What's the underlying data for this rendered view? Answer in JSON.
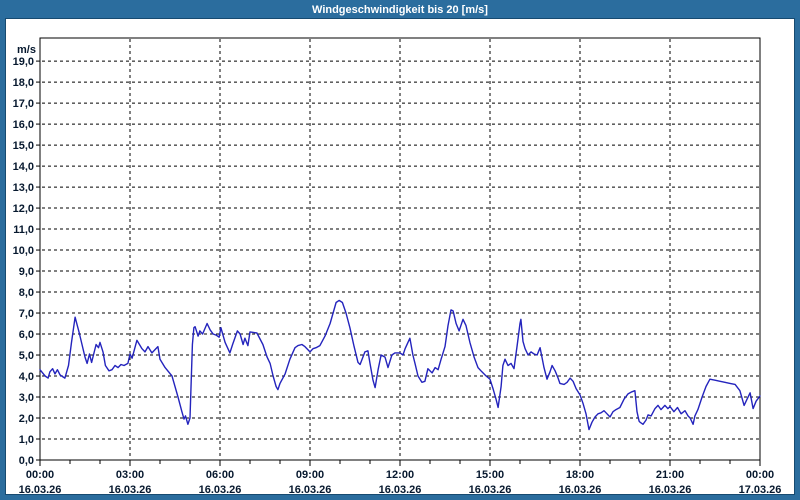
{
  "title_bar": {
    "text": "Windgeschwindigkeit bis 20 [m/s]",
    "bg_color": "#2b6d9e",
    "text_color": "#ffffff"
  },
  "colors": {
    "panel_bg": "#ffffff",
    "grid": "#000000",
    "axis": "#000000",
    "tick_label": "#06182e",
    "series_line": "#2424bd"
  },
  "chart_data": {
    "type": "line",
    "title": "Windgeschwindigkeit bis 20 [m/s]",
    "xlabel": "",
    "ylabel": "m/s",
    "ylim": [
      0,
      20.1
    ],
    "xlim_hours": [
      0,
      24
    ],
    "grid": true,
    "grid_style": "dashed",
    "legend_position": "none",
    "y_tick_labels": [
      "0,0",
      "1,0",
      "2,0",
      "3,0",
      "4,0",
      "5,0",
      "6,0",
      "7,0",
      "8,0",
      "9,0",
      "10,0",
      "11,0",
      "12,0",
      "13,0",
      "14,0",
      "15,0",
      "16,0",
      "17,0",
      "18,0",
      "19,0"
    ],
    "x_ticks": [
      {
        "hour": 0,
        "time": "00:00",
        "date": "16.03.26"
      },
      {
        "hour": 3,
        "time": "03:00",
        "date": "16.03.26"
      },
      {
        "hour": 6,
        "time": "06:00",
        "date": "16.03.26"
      },
      {
        "hour": 9,
        "time": "09:00",
        "date": "16.03.26"
      },
      {
        "hour": 12,
        "time": "12:00",
        "date": "16.03.26"
      },
      {
        "hour": 15,
        "time": "15:00",
        "date": "16.03.26"
      },
      {
        "hour": 18,
        "time": "18:00",
        "date": "16.03.26"
      },
      {
        "hour": 21,
        "time": "21:00",
        "date": "16.03.26"
      },
      {
        "hour": 24,
        "time": "00:00",
        "date": "17.03.26"
      }
    ],
    "minor_x_tick_every_hours": 1,
    "series": [
      {
        "name": "Windgeschwindigkeit",
        "unit": "m/s",
        "color": "#2424bd",
        "points": [
          [
            0,
            4.3
          ],
          [
            0.17,
            4.0
          ],
          [
            0.27,
            3.9
          ],
          [
            0.33,
            4.2
          ],
          [
            0.42,
            4.35
          ],
          [
            0.5,
            4.1
          ],
          [
            0.58,
            4.3
          ],
          [
            0.67,
            4.05
          ],
          [
            0.83,
            3.9
          ],
          [
            0.95,
            4.5
          ],
          [
            1.05,
            5.6
          ],
          [
            1.17,
            6.8
          ],
          [
            1.3,
            6.1
          ],
          [
            1.4,
            5.5
          ],
          [
            1.5,
            4.9
          ],
          [
            1.57,
            4.6
          ],
          [
            1.65,
            5.05
          ],
          [
            1.72,
            4.65
          ],
          [
            1.87,
            5.5
          ],
          [
            1.95,
            5.35
          ],
          [
            2.0,
            5.6
          ],
          [
            2.1,
            5.15
          ],
          [
            2.18,
            4.5
          ],
          [
            2.3,
            4.25
          ],
          [
            2.4,
            4.3
          ],
          [
            2.5,
            4.5
          ],
          [
            2.6,
            4.4
          ],
          [
            2.7,
            4.55
          ],
          [
            2.8,
            4.5
          ],
          [
            2.93,
            4.6
          ],
          [
            3.0,
            5.05
          ],
          [
            3.07,
            4.85
          ],
          [
            3.23,
            5.7
          ],
          [
            3.4,
            5.3
          ],
          [
            3.5,
            5.15
          ],
          [
            3.6,
            5.4
          ],
          [
            3.73,
            5.1
          ],
          [
            3.93,
            5.4
          ],
          [
            4.0,
            4.8
          ],
          [
            4.17,
            4.4
          ],
          [
            4.4,
            4.0
          ],
          [
            4.6,
            3.0
          ],
          [
            4.73,
            2.3
          ],
          [
            4.8,
            1.95
          ],
          [
            4.85,
            2.1
          ],
          [
            4.93,
            1.7
          ],
          [
            5.0,
            2.0
          ],
          [
            5.08,
            5.5
          ],
          [
            5.13,
            6.3
          ],
          [
            5.17,
            6.35
          ],
          [
            5.27,
            5.9
          ],
          [
            5.33,
            6.15
          ],
          [
            5.42,
            6.0
          ],
          [
            5.57,
            6.5
          ],
          [
            5.67,
            6.2
          ],
          [
            5.77,
            6.0
          ],
          [
            5.87,
            5.95
          ],
          [
            5.97,
            5.85
          ],
          [
            6.03,
            6.3
          ],
          [
            6.17,
            5.6
          ],
          [
            6.33,
            5.1
          ],
          [
            6.42,
            5.5
          ],
          [
            6.58,
            6.15
          ],
          [
            6.67,
            6.0
          ],
          [
            6.77,
            5.5
          ],
          [
            6.83,
            5.8
          ],
          [
            6.93,
            5.45
          ],
          [
            7.0,
            6.1
          ],
          [
            7.23,
            6.05
          ],
          [
            7.43,
            5.5
          ],
          [
            7.57,
            4.9
          ],
          [
            7.67,
            4.6
          ],
          [
            7.77,
            4.0
          ],
          [
            7.87,
            3.5
          ],
          [
            7.93,
            3.35
          ],
          [
            8.0,
            3.65
          ],
          [
            8.17,
            4.1
          ],
          [
            8.33,
            4.8
          ],
          [
            8.5,
            5.35
          ],
          [
            8.6,
            5.45
          ],
          [
            8.73,
            5.5
          ],
          [
            8.83,
            5.4
          ],
          [
            9.0,
            5.15
          ],
          [
            9.1,
            5.3
          ],
          [
            9.2,
            5.35
          ],
          [
            9.33,
            5.45
          ],
          [
            9.5,
            5.9
          ],
          [
            9.67,
            6.5
          ],
          [
            9.77,
            7.0
          ],
          [
            9.87,
            7.5
          ],
          [
            9.97,
            7.6
          ],
          [
            10.08,
            7.5
          ],
          [
            10.2,
            7.0
          ],
          [
            10.33,
            6.3
          ],
          [
            10.47,
            5.4
          ],
          [
            10.6,
            4.65
          ],
          [
            10.67,
            4.55
          ],
          [
            10.83,
            5.15
          ],
          [
            10.93,
            5.2
          ],
          [
            11.0,
            4.6
          ],
          [
            11.1,
            3.8
          ],
          [
            11.17,
            3.45
          ],
          [
            11.27,
            4.3
          ],
          [
            11.37,
            5.0
          ],
          [
            11.5,
            4.9
          ],
          [
            11.6,
            4.4
          ],
          [
            11.73,
            5.0
          ],
          [
            11.83,
            5.1
          ],
          [
            12.0,
            5.1
          ],
          [
            12.1,
            5.0
          ],
          [
            12.17,
            5.3
          ],
          [
            12.33,
            5.8
          ],
          [
            12.43,
            5.0
          ],
          [
            12.5,
            4.6
          ],
          [
            12.6,
            4.0
          ],
          [
            12.73,
            3.7
          ],
          [
            12.83,
            3.75
          ],
          [
            12.93,
            4.35
          ],
          [
            13.07,
            4.15
          ],
          [
            13.17,
            4.4
          ],
          [
            13.27,
            4.3
          ],
          [
            13.37,
            4.8
          ],
          [
            13.5,
            5.4
          ],
          [
            13.6,
            6.4
          ],
          [
            13.7,
            7.15
          ],
          [
            13.77,
            7.1
          ],
          [
            13.87,
            6.5
          ],
          [
            13.97,
            6.15
          ],
          [
            14.1,
            6.7
          ],
          [
            14.2,
            6.4
          ],
          [
            14.33,
            5.6
          ],
          [
            14.47,
            4.9
          ],
          [
            14.6,
            4.4
          ],
          [
            14.73,
            4.2
          ],
          [
            14.87,
            4.0
          ],
          [
            15.0,
            3.85
          ],
          [
            15.1,
            3.4
          ],
          [
            15.2,
            2.9
          ],
          [
            15.27,
            2.5
          ],
          [
            15.37,
            3.5
          ],
          [
            15.43,
            4.5
          ],
          [
            15.5,
            4.8
          ],
          [
            15.6,
            4.5
          ],
          [
            15.7,
            4.6
          ],
          [
            15.8,
            4.35
          ],
          [
            15.9,
            5.4
          ],
          [
            16.0,
            6.5
          ],
          [
            16.03,
            6.7
          ],
          [
            16.1,
            5.65
          ],
          [
            16.17,
            5.3
          ],
          [
            16.27,
            5.0
          ],
          [
            16.37,
            5.15
          ],
          [
            16.47,
            5.05
          ],
          [
            16.57,
            5.0
          ],
          [
            16.67,
            5.35
          ],
          [
            16.8,
            4.4
          ],
          [
            16.9,
            3.85
          ],
          [
            17.0,
            4.2
          ],
          [
            17.07,
            4.5
          ],
          [
            17.17,
            4.25
          ],
          [
            17.27,
            3.9
          ],
          [
            17.33,
            3.65
          ],
          [
            17.47,
            3.6
          ],
          [
            17.57,
            3.7
          ],
          [
            17.67,
            3.9
          ],
          [
            17.77,
            3.75
          ],
          [
            17.87,
            3.4
          ],
          [
            18.0,
            3.1
          ],
          [
            18.1,
            2.7
          ],
          [
            18.2,
            2.2
          ],
          [
            18.3,
            1.45
          ],
          [
            18.4,
            1.8
          ],
          [
            18.5,
            2.05
          ],
          [
            18.6,
            2.2
          ],
          [
            18.7,
            2.25
          ],
          [
            18.8,
            2.35
          ],
          [
            18.9,
            2.2
          ],
          [
            19.0,
            2.05
          ],
          [
            19.1,
            2.3
          ],
          [
            19.2,
            2.4
          ],
          [
            19.33,
            2.5
          ],
          [
            19.47,
            2.9
          ],
          [
            19.6,
            3.15
          ],
          [
            19.73,
            3.25
          ],
          [
            19.83,
            3.3
          ],
          [
            19.9,
            2.3
          ],
          [
            19.97,
            1.85
          ],
          [
            20.0,
            1.8
          ],
          [
            20.1,
            1.7
          ],
          [
            20.2,
            1.9
          ],
          [
            20.27,
            2.15
          ],
          [
            20.37,
            2.1
          ],
          [
            20.5,
            2.45
          ],
          [
            20.6,
            2.6
          ],
          [
            20.7,
            2.4
          ],
          [
            20.83,
            2.6
          ],
          [
            20.93,
            2.45
          ],
          [
            21.0,
            2.55
          ],
          [
            21.13,
            2.3
          ],
          [
            21.25,
            2.5
          ],
          [
            21.37,
            2.2
          ],
          [
            21.5,
            2.35
          ],
          [
            21.6,
            2.1
          ],
          [
            21.67,
            2.0
          ],
          [
            21.77,
            1.7
          ],
          [
            21.83,
            2.1
          ],
          [
            21.93,
            2.4
          ],
          [
            22.07,
            3.0
          ],
          [
            22.2,
            3.5
          ],
          [
            22.33,
            3.85
          ],
          [
            22.5,
            3.8
          ],
          [
            22.67,
            3.75
          ],
          [
            22.83,
            3.7
          ],
          [
            23.0,
            3.65
          ],
          [
            23.17,
            3.6
          ],
          [
            23.33,
            3.3
          ],
          [
            23.47,
            2.6
          ],
          [
            23.57,
            2.9
          ],
          [
            23.67,
            3.2
          ],
          [
            23.77,
            2.45
          ],
          [
            23.87,
            2.8
          ],
          [
            24.0,
            3.05
          ]
        ]
      }
    ]
  }
}
